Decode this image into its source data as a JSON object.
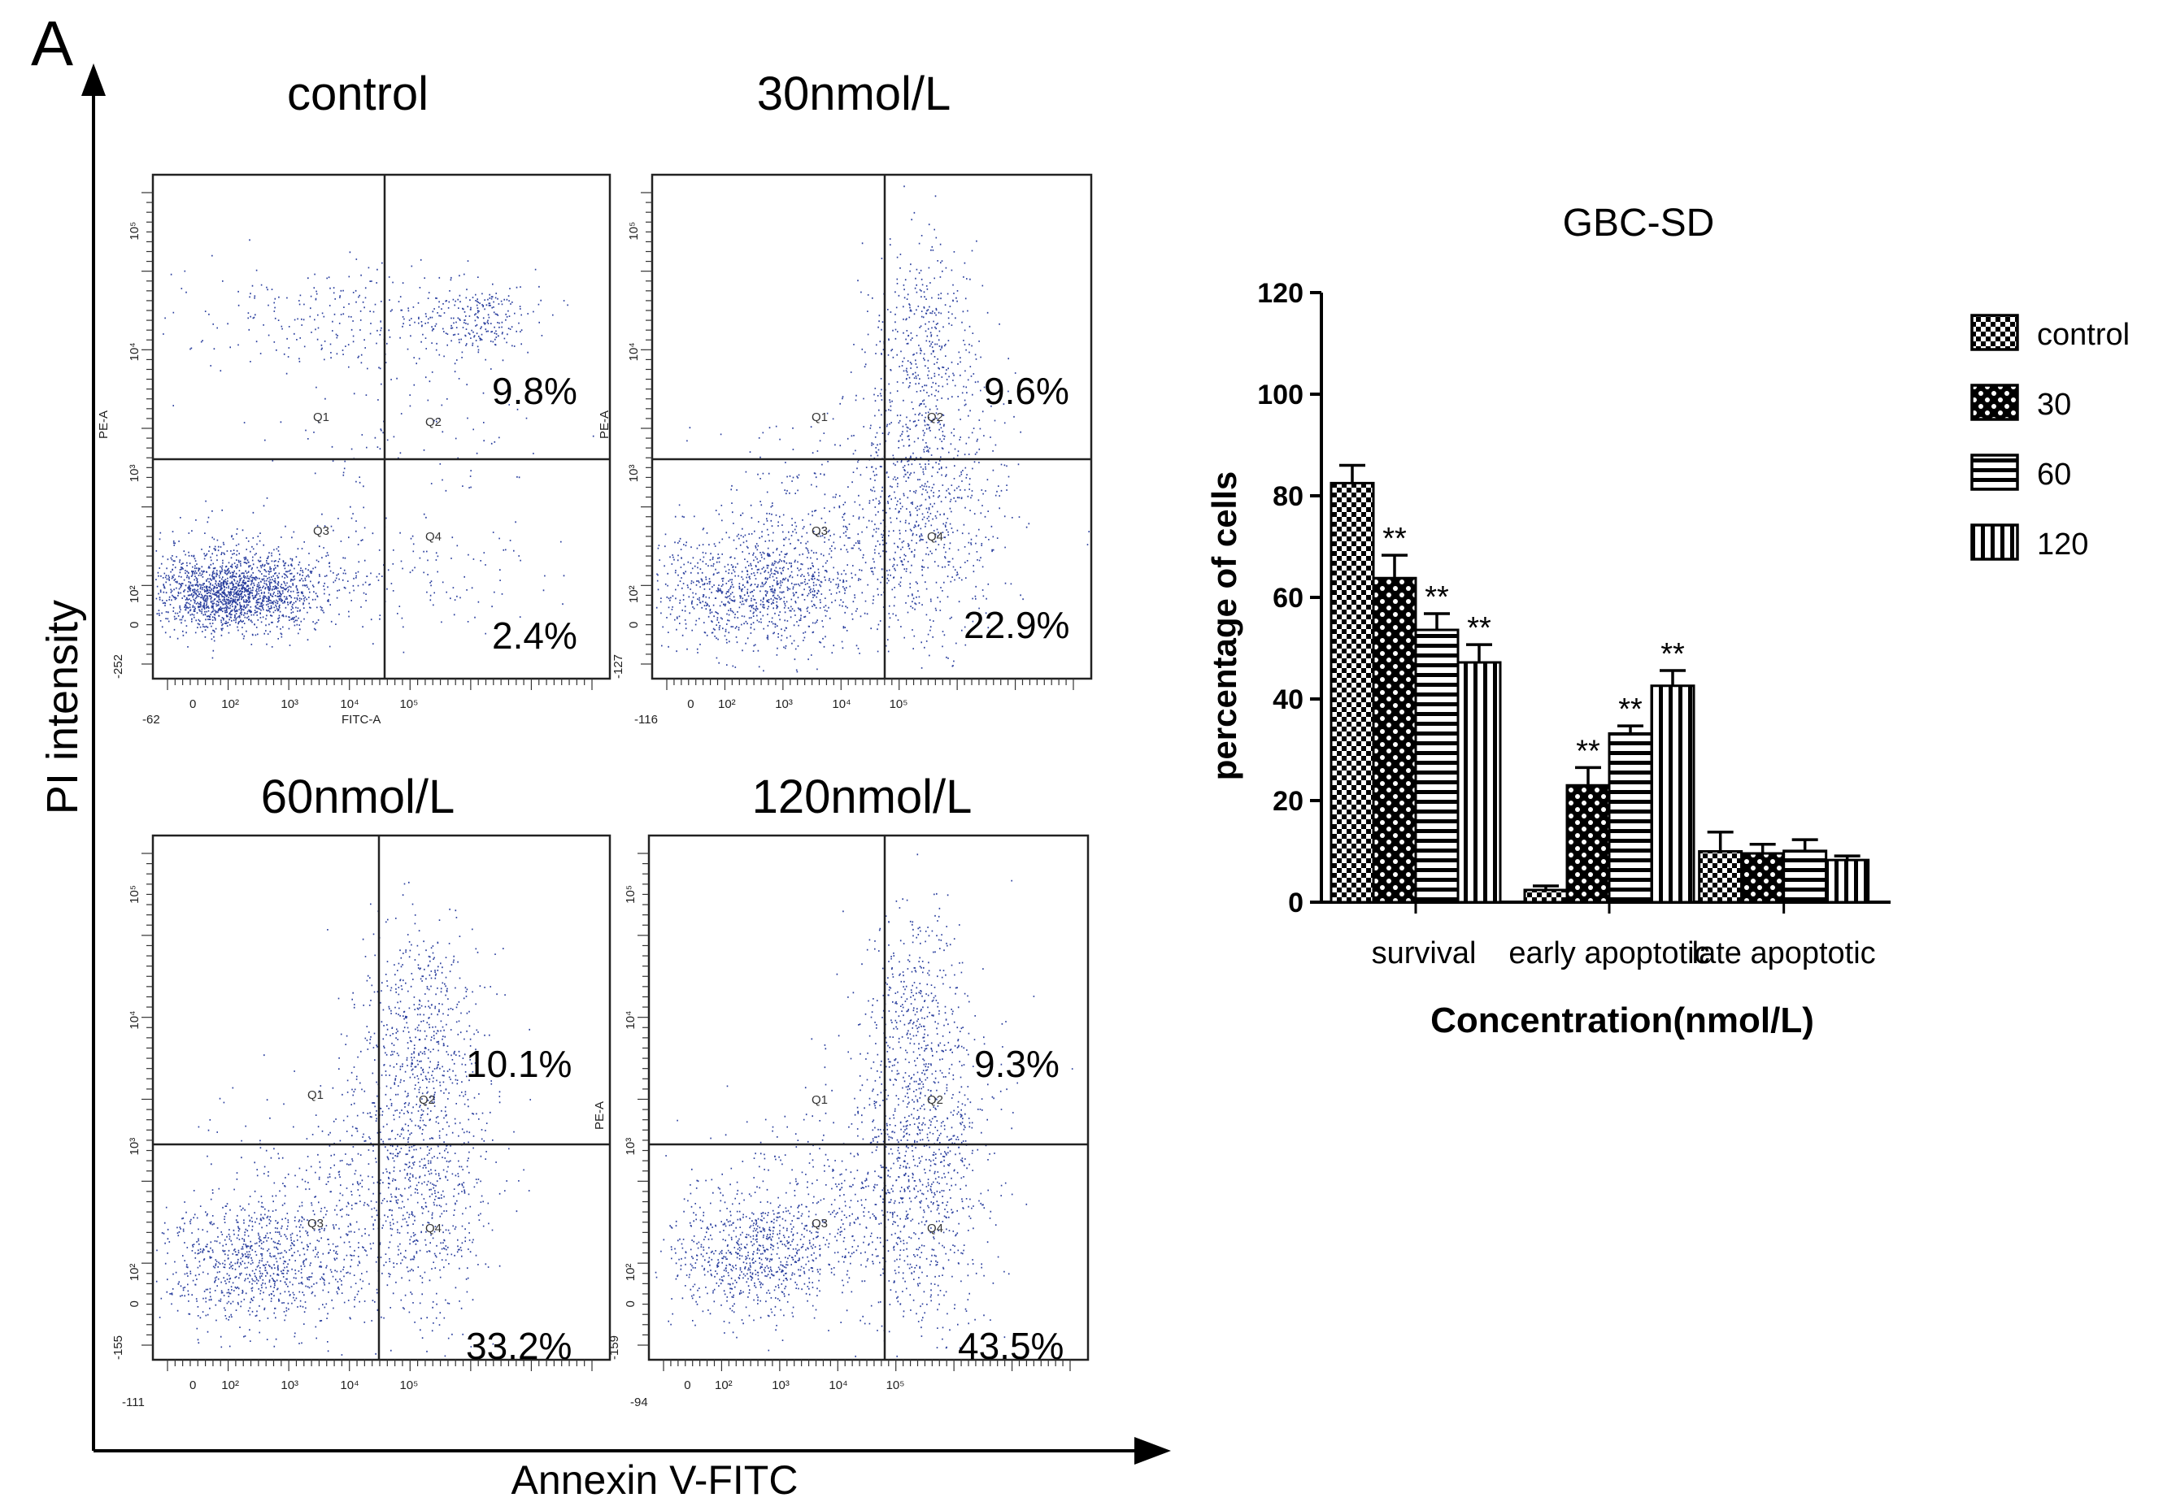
{
  "figure": {
    "panel_label": "A",
    "ylabel": "PI  intensity",
    "xlabel": "Annexin V-FITC",
    "flow_panels": [
      {
        "title": "control",
        "upper_right_pct": "9.8%",
        "lower_right_pct": "2.4%",
        "min_x": "-62",
        "min_y": "-252",
        "y_axis_label": "PE-A",
        "x_axis_label": "FITC-A",
        "pattern": "control"
      },
      {
        "title": "30nmol/L",
        "upper_right_pct": "9.6%",
        "lower_right_pct": "22.9%",
        "min_x": "-116",
        "min_y": "-127",
        "y_axis_label": "PE-A",
        "x_axis_label": "",
        "pattern": "low"
      },
      {
        "title": "60nmol/L",
        "upper_right_pct": "10.1%",
        "lower_right_pct": "33.2%",
        "min_x": "-111",
        "min_y": "-155",
        "y_axis_label": "",
        "x_axis_label": "",
        "pattern": "mid"
      },
      {
        "title": "120nmol/L",
        "upper_right_pct": "9.3%",
        "lower_right_pct": "43.5%",
        "min_x": "-94",
        "min_y": "-159",
        "y_axis_label": "PE-A",
        "x_axis_label": "",
        "pattern": "high"
      }
    ],
    "quadrant_labels": [
      "Q1",
      "Q2",
      "Q3",
      "Q4"
    ],
    "zero_tick": "0",
    "log_ticks": [
      "10²",
      "10³",
      "10⁴",
      "10⁵"
    ]
  },
  "chart_data": {
    "type": "bar",
    "title": "GBC-SD",
    "xlabel": "Concentration(nmol/L)",
    "ylabel": "percentage of cells",
    "ylim": [
      0,
      120
    ],
    "yticks": [
      0,
      20,
      40,
      60,
      80,
      100,
      120
    ],
    "categories": [
      "survival",
      "early apoptotic",
      "late apoptotic"
    ],
    "series": [
      {
        "name": "control",
        "pattern": "checker",
        "values": [
          82.5,
          2.4,
          10.0
        ],
        "errors": [
          3.5,
          0.8,
          3.8
        ],
        "sig": [
          "",
          "",
          ""
        ]
      },
      {
        "name": "30",
        "pattern": "dots",
        "values": [
          63.8,
          23.0,
          9.6
        ],
        "errors": [
          4.5,
          3.5,
          1.8
        ],
        "sig": [
          "**",
          "**",
          ""
        ]
      },
      {
        "name": "60",
        "pattern": "hlines",
        "values": [
          53.6,
          33.2,
          10.1
        ],
        "errors": [
          3.2,
          1.5,
          2.2
        ],
        "sig": [
          "**",
          "**",
          ""
        ]
      },
      {
        "name": "120",
        "pattern": "vlines",
        "values": [
          47.2,
          42.6,
          8.3
        ],
        "errors": [
          3.5,
          3.0,
          0.8
        ],
        "sig": [
          "**",
          "**",
          ""
        ]
      }
    ],
    "colors": {
      "ink": "#000000",
      "dots": "#2a3f9e",
      "lines": "#111111"
    }
  }
}
